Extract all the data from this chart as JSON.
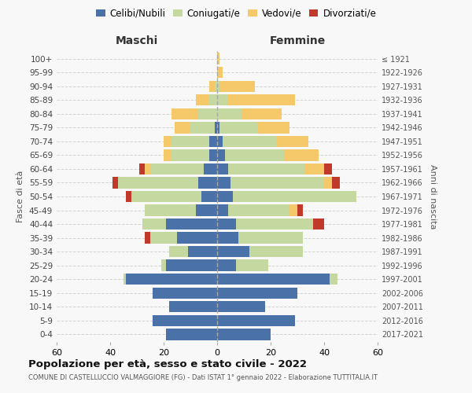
{
  "age_groups": [
    "0-4",
    "5-9",
    "10-14",
    "15-19",
    "20-24",
    "25-29",
    "30-34",
    "35-39",
    "40-44",
    "45-49",
    "50-54",
    "55-59",
    "60-64",
    "65-69",
    "70-74",
    "75-79",
    "80-84",
    "85-89",
    "90-94",
    "95-99",
    "100+"
  ],
  "birth_years": [
    "2017-2021",
    "2012-2016",
    "2007-2011",
    "2002-2006",
    "1997-2001",
    "1992-1996",
    "1987-1991",
    "1982-1986",
    "1977-1981",
    "1972-1976",
    "1967-1971",
    "1962-1966",
    "1957-1961",
    "1952-1956",
    "1947-1951",
    "1942-1946",
    "1937-1941",
    "1932-1936",
    "1927-1931",
    "1922-1926",
    "≤ 1921"
  ],
  "maschi": {
    "celibe": [
      19,
      24,
      18,
      24,
      34,
      19,
      11,
      15,
      19,
      8,
      6,
      7,
      5,
      3,
      3,
      1,
      0,
      0,
      0,
      0,
      0
    ],
    "coniugato": [
      0,
      0,
      0,
      0,
      1,
      2,
      7,
      10,
      9,
      19,
      26,
      30,
      20,
      14,
      14,
      9,
      7,
      3,
      1,
      0,
      0
    ],
    "vedovo": [
      0,
      0,
      0,
      0,
      0,
      0,
      0,
      0,
      0,
      0,
      0,
      0,
      2,
      3,
      3,
      6,
      10,
      5,
      2,
      0,
      0
    ],
    "divorziato": [
      0,
      0,
      0,
      0,
      0,
      0,
      0,
      2,
      0,
      0,
      2,
      2,
      2,
      0,
      0,
      0,
      0,
      0,
      0,
      0,
      0
    ]
  },
  "femmine": {
    "nubile": [
      20,
      29,
      18,
      30,
      42,
      7,
      12,
      8,
      7,
      4,
      6,
      5,
      4,
      3,
      2,
      1,
      0,
      0,
      0,
      0,
      0
    ],
    "coniugata": [
      0,
      0,
      0,
      0,
      3,
      12,
      20,
      24,
      29,
      23,
      46,
      35,
      29,
      22,
      20,
      14,
      9,
      4,
      1,
      0,
      0
    ],
    "vedova": [
      0,
      0,
      0,
      0,
      0,
      0,
      0,
      0,
      0,
      3,
      0,
      3,
      7,
      13,
      12,
      12,
      15,
      25,
      13,
      2,
      1
    ],
    "divorziata": [
      0,
      0,
      0,
      0,
      0,
      0,
      0,
      0,
      4,
      2,
      0,
      3,
      3,
      0,
      0,
      0,
      0,
      0,
      0,
      0,
      0
    ]
  },
  "colors": {
    "celibe_nubile": "#4a72a8",
    "coniugato_a": "#c5d8a0",
    "vedovo_a": "#f5c96a",
    "divorziato_a": "#c0392b"
  },
  "xlim": 60,
  "title": "Popolazione per età, sesso e stato civile - 2022",
  "subtitle": "COMUNE DI CASTELLUCCIO VALMAGGIORE (FG) - Dati ISTAT 1° gennaio 2022 - Elaborazione TUTTITALIA.IT",
  "ylabel_left": "Fasce di età",
  "ylabel_right": "Anni di nascita",
  "xlabel_maschi": "Maschi",
  "xlabel_femmine": "Femmine",
  "bg_color": "#f8f8f8",
  "bar_height": 0.82
}
